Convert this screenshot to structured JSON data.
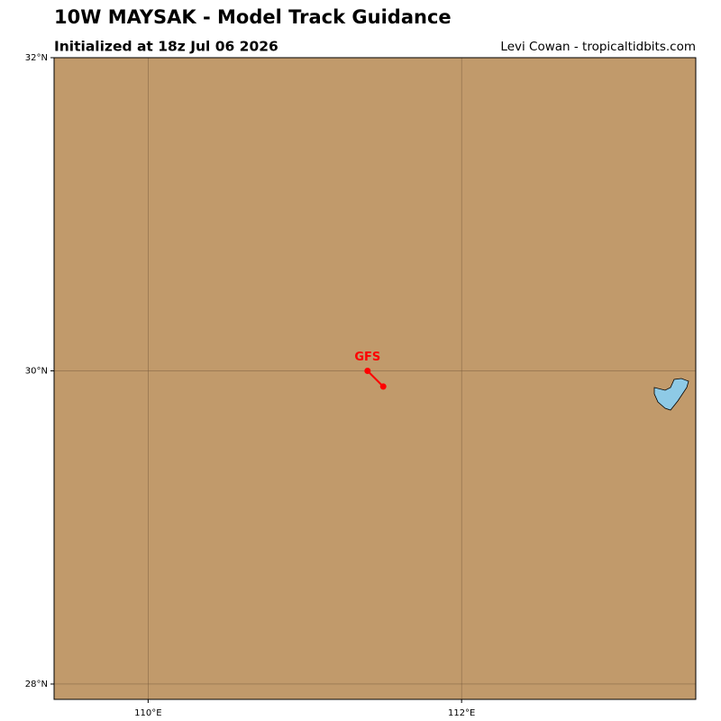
{
  "chart_data": {
    "type": "track",
    "title": "10W MAYSAK - Model Track Guidance",
    "subtitle": "Initialized at 18z Jul 06 2026",
    "credit": "Levi Cowan - tropicaltidbits.com",
    "xlim": [
      109.4,
      113.494
    ],
    "ylim": [
      27.902,
      32.0
    ],
    "xticks": [
      {
        "value": 110,
        "label": "110°E"
      },
      {
        "value": 112,
        "label": "112°E"
      }
    ],
    "yticks": [
      {
        "value": 28,
        "label": "28°N"
      },
      {
        "value": 30,
        "label": "30°N"
      },
      {
        "value": 32,
        "label": "32°N"
      }
    ],
    "grid": true,
    "land_color": "#c19a6b",
    "series": [
      {
        "name": "GFS",
        "color": "#ff0000",
        "x": [
          111.4,
          111.5
        ],
        "values": [
          30.0,
          29.9
        ]
      }
    ]
  }
}
